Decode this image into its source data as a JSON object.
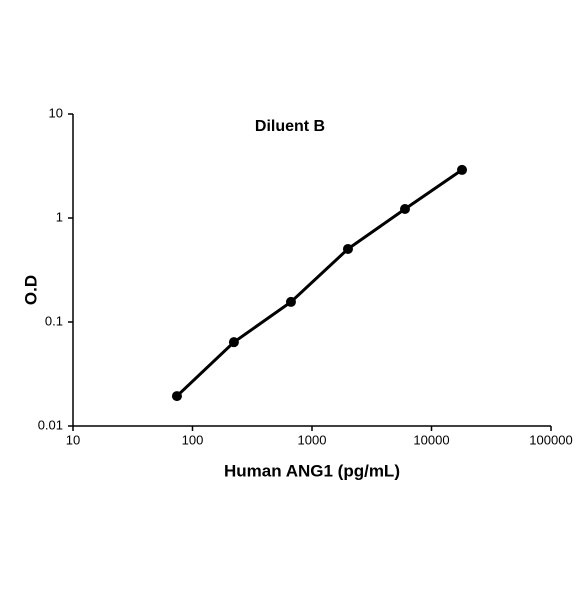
{
  "chart_data": {
    "type": "line",
    "title": "Diluent B",
    "x_label": "Human ANG1 (pg/mL)",
    "y_label": "O.D",
    "x": [
      74.1,
      222.2,
      666.7,
      2000,
      6000,
      18000
    ],
    "series": [
      {
        "name": "Diluent B",
        "color": "#000000",
        "values": [
          0.0194,
          0.064,
          0.156,
          0.504,
          1.22,
          2.9
        ]
      }
    ],
    "xscale": "log",
    "yscale": "log",
    "xlim": [
      10,
      100000
    ],
    "xticks": [
      10,
      100,
      1000,
      10000,
      100000
    ],
    "ylim": [
      0.01,
      10
    ],
    "yticks": [
      0.01,
      0.1,
      1,
      10
    ],
    "grid": false
  }
}
